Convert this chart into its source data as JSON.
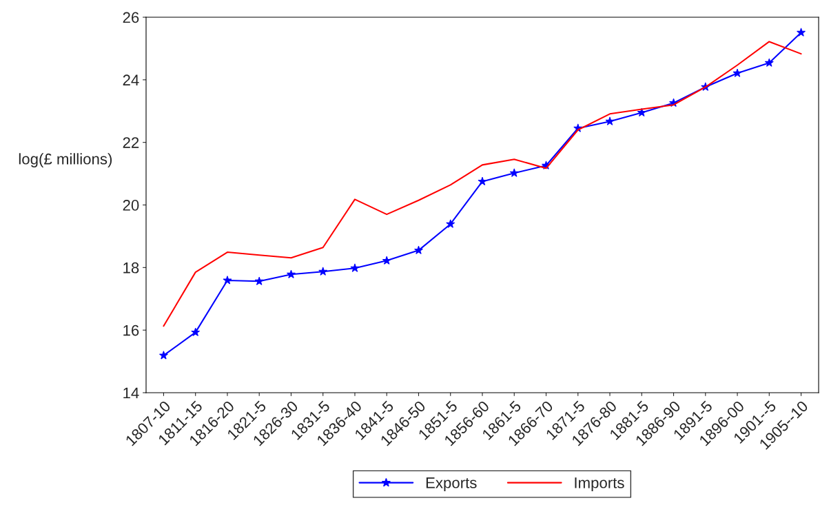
{
  "chart_data": {
    "type": "line",
    "ylabel": "log(£ millions)",
    "categories": [
      "1807-10",
      "1811-15",
      "1816-20",
      "1821-5",
      "1826-30",
      "1831-5",
      "1836-40",
      "1841-5",
      "1846-50",
      "1851-5",
      "1856-60",
      "1861-5",
      "1866-70",
      "1871-5",
      "1876-80",
      "1881-5",
      "1886-90",
      "1891-5",
      "1896-00",
      "1901--5",
      "1905--10"
    ],
    "series": [
      {
        "name": "Exports",
        "color": "#0000ff",
        "marker": "star",
        "values": [
          15.19,
          15.93,
          17.59,
          17.56,
          17.78,
          17.87,
          17.98,
          18.22,
          18.55,
          19.39,
          20.75,
          21.02,
          21.26,
          22.45,
          22.67,
          22.95,
          23.26,
          23.77,
          24.21,
          24.54,
          25.51
        ]
      },
      {
        "name": "Imports",
        "color": "#ff0000",
        "marker": "none",
        "values": [
          16.13,
          17.85,
          18.49,
          18.4,
          18.31,
          18.64,
          20.18,
          19.7,
          20.15,
          20.64,
          21.28,
          21.46,
          21.17,
          22.4,
          22.91,
          23.06,
          23.2,
          23.77,
          24.47,
          25.22,
          24.83
        ]
      }
    ],
    "ylim": [
      14,
      26
    ],
    "yticks": [
      14,
      16,
      18,
      20,
      22,
      24,
      26
    ],
    "grid": false,
    "legend": "bottom",
    "line_style": "solid"
  }
}
